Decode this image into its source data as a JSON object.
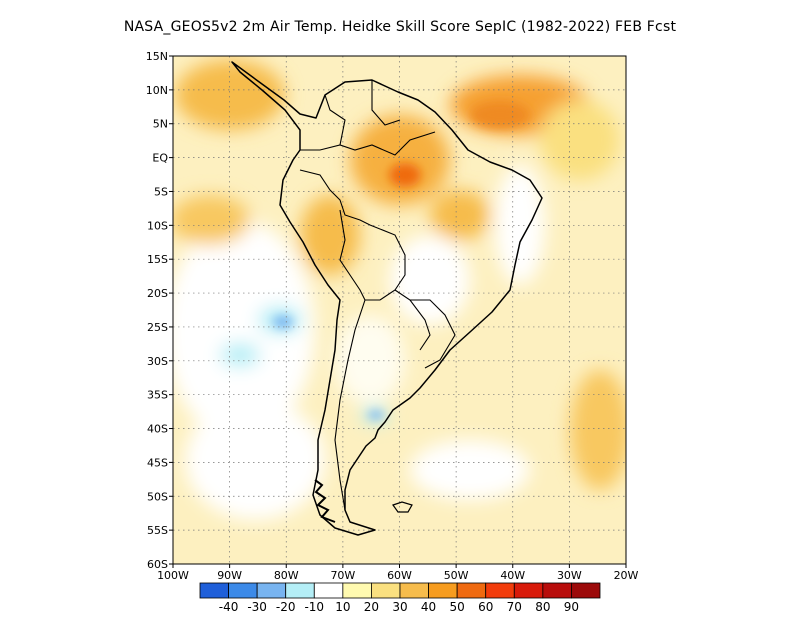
{
  "title": "NASA_GEOS5v2  2m Air Temp. Heidke Skill Score SepIC (1982-2022) FEB Fcst",
  "map": {
    "lon_range": [
      -100,
      -20
    ],
    "lat_range": [
      -60,
      15
    ],
    "lon_tick_labels": [
      "100W",
      "90W",
      "80W",
      "70W",
      "60W",
      "50W",
      "40W",
      "30W",
      "20W"
    ],
    "lat_tick_labels": [
      "15N",
      "10N",
      "5N",
      "EQ",
      "5S",
      "10S",
      "15S",
      "20S",
      "25S",
      "30S",
      "35S",
      "40S",
      "45S",
      "50S",
      "55S",
      "60S"
    ],
    "grid": "dotted"
  },
  "colorbar": {
    "colors": [
      "#1f5fd9",
      "#3c8ae8",
      "#78b4f0",
      "#b4eef6",
      "#ffffff",
      "#fffab0",
      "#fae080",
      "#f6bc4c",
      "#f69c1f",
      "#ef6a10",
      "#f23c0b",
      "#d81a0a",
      "#b80d0b",
      "#9c0a0a"
    ],
    "labels": [
      "-40",
      "-30",
      "-20",
      "-10",
      "10",
      "20",
      "30",
      "40",
      "50",
      "60",
      "70",
      "80",
      "90"
    ]
  }
}
